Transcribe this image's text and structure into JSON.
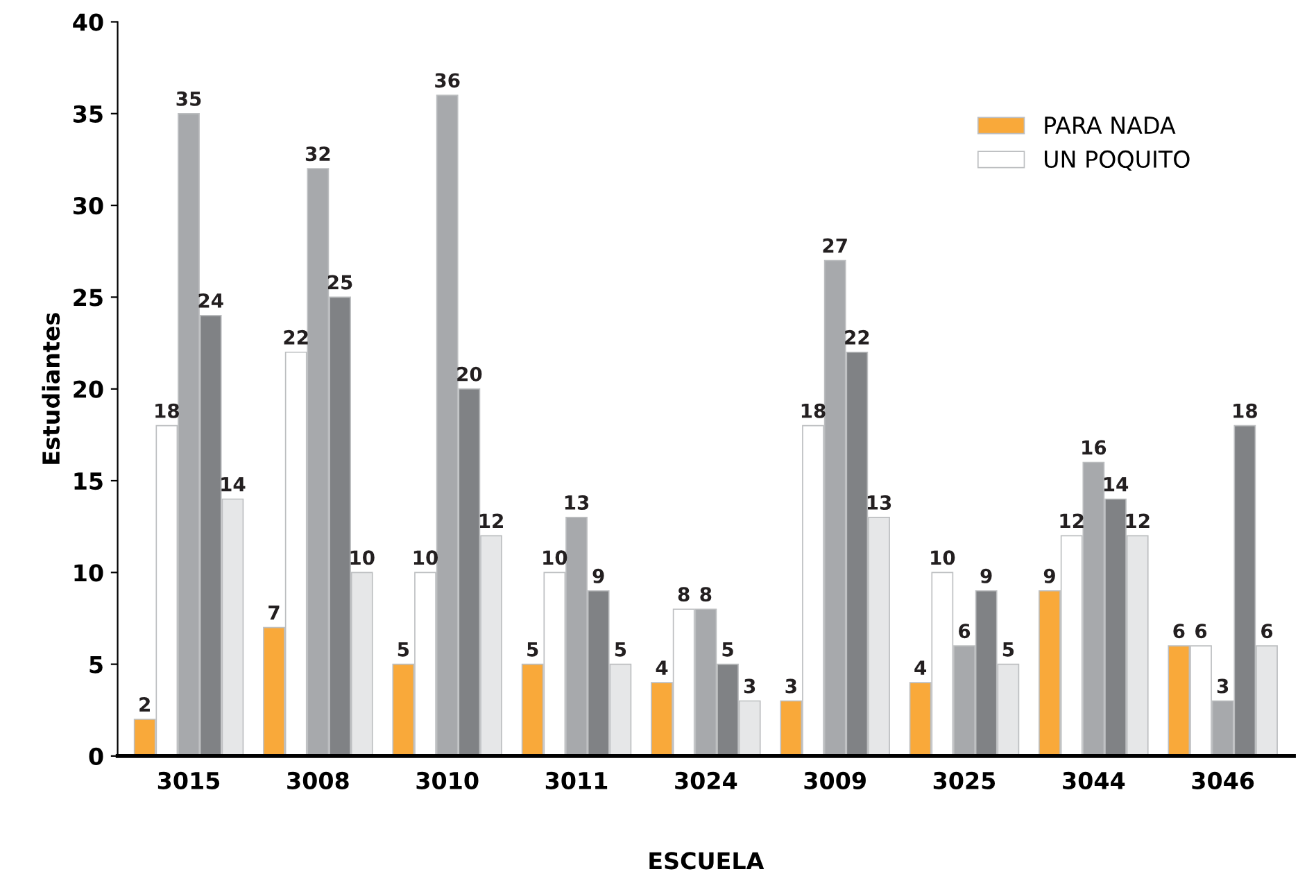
{
  "chart_data": {
    "type": "bar",
    "xlabel": "ESCUELA",
    "ylabel": "Estudiantes",
    "categories": [
      "3015",
      "3008",
      "3010",
      "3011",
      "3024",
      "3009",
      "3025",
      "3044",
      "3046"
    ],
    "series": [
      {
        "name": "PARA NADA",
        "color": "#f9a93a",
        "values": [
          2,
          7,
          5,
          5,
          4,
          3,
          4,
          9,
          6
        ]
      },
      {
        "name": "UN POQUITO",
        "color": "#ffffff",
        "values": [
          18,
          22,
          10,
          10,
          8,
          18,
          10,
          12,
          6
        ]
      },
      {
        "color": "#a7a9ac",
        "values": [
          35,
          32,
          36,
          13,
          8,
          27,
          6,
          16,
          3
        ]
      },
      {
        "color": "#808285",
        "values": [
          24,
          25,
          20,
          9,
          5,
          22,
          9,
          14,
          18
        ]
      },
      {
        "color": "#e6e7e8",
        "values": [
          14,
          10,
          12,
          5,
          3,
          13,
          5,
          12,
          6
        ]
      }
    ],
    "ylim": [
      0,
      40
    ],
    "yticks": [
      0,
      5,
      10,
      15,
      20,
      25,
      30,
      35,
      40
    ],
    "data_labels": true,
    "grid": false,
    "legend": "top right"
  }
}
